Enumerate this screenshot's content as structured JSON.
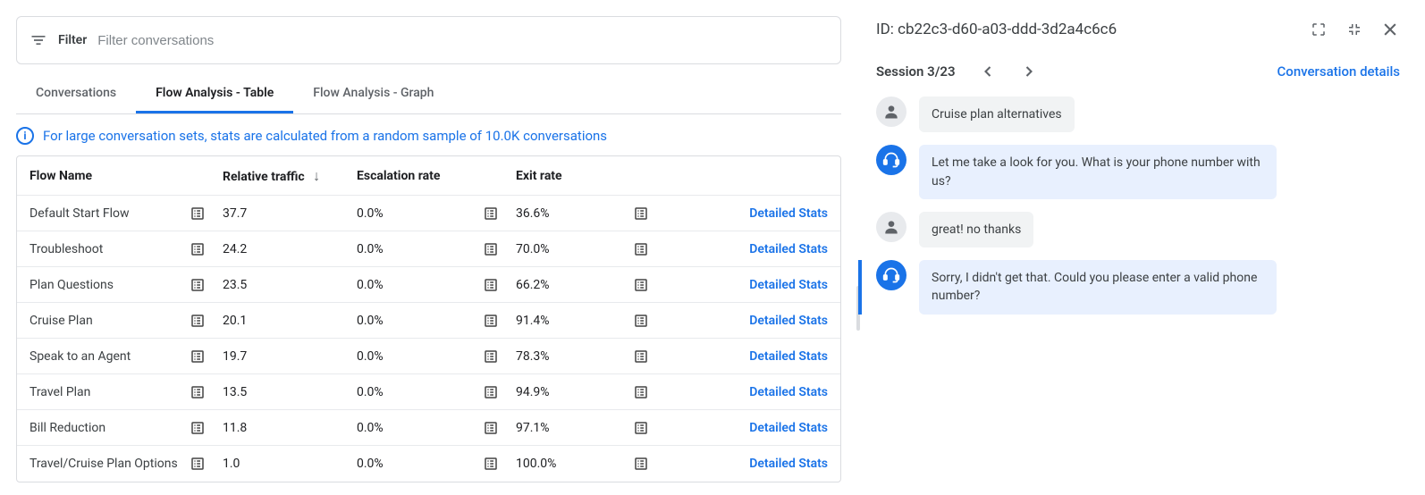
{
  "filter": {
    "label": "Filter",
    "placeholder": "Filter conversations"
  },
  "tabs": {
    "items": [
      {
        "label": "Conversations"
      },
      {
        "label": "Flow Analysis - Table"
      },
      {
        "label": "Flow Analysis - Graph"
      }
    ],
    "active_index": 1
  },
  "info_banner": "For large conversation sets, stats are calculated from a random sample of 10.0K conversations",
  "table": {
    "columns": {
      "flow_name": "Flow Name",
      "relative_traffic": "Relative traffic",
      "escalation_rate": "Escalation rate",
      "exit_rate": "Exit rate"
    },
    "sort_column": "relative_traffic",
    "sort_dir": "desc",
    "action_label": "Detailed Stats",
    "rows": [
      {
        "name": "Default Start Flow",
        "rel": "37.7",
        "esc": "0.0%",
        "exit": "36.6%"
      },
      {
        "name": "Troubleshoot",
        "rel": "24.2",
        "esc": "0.0%",
        "exit": "70.0%"
      },
      {
        "name": "Plan Questions",
        "rel": "23.5",
        "esc": "0.0%",
        "exit": "66.2%"
      },
      {
        "name": "Cruise Plan",
        "rel": "20.1",
        "esc": "0.0%",
        "exit": "91.4%"
      },
      {
        "name": "Speak to an Agent",
        "rel": "19.7",
        "esc": "0.0%",
        "exit": "78.3%"
      },
      {
        "name": "Travel Plan",
        "rel": "13.5",
        "esc": "0.0%",
        "exit": "94.9%"
      },
      {
        "name": "Bill Reduction",
        "rel": "11.8",
        "esc": "0.0%",
        "exit": "97.1%"
      },
      {
        "name": "Travel/Cruise Plan Options",
        "rel": "1.0",
        "esc": "0.0%",
        "exit": "100.0%"
      }
    ]
  },
  "detail": {
    "id_label": "ID: cb22c3-d60-a03-ddd-3d2a4c6c6",
    "session_label": "Session 3/23",
    "conversation_details": "Conversation details",
    "messages": [
      {
        "role": "user",
        "text": "Cruise plan alternatives"
      },
      {
        "role": "agent",
        "text": "Let me take a look for you. What is your phone number with us?"
      },
      {
        "role": "user",
        "text": "great! no thanks"
      },
      {
        "role": "agent",
        "text": "Sorry, I didn't get that. Could you please enter a valid phone number?",
        "highlighted": true
      }
    ]
  },
  "colors": {
    "accent": "#1a73e8",
    "border": "#dadce0",
    "text_secondary": "#5f6368",
    "bubble_user": "#f1f3f4",
    "bubble_agent": "#e8f0fe"
  }
}
